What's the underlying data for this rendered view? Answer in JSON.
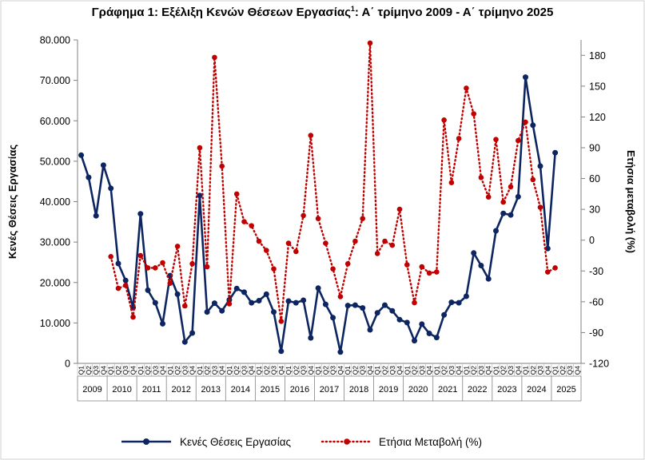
{
  "chart_data": {
    "type": "line",
    "title_main": "Γράφημα 1: Εξέλιξη Κενών Θέσεων Εργασίας",
    "title_sup": "1",
    "title_rest": ": Α΄ τρίμηνο 2009 - Α΄ τρίμηνο 2025",
    "ylabel_left": "Κενές Θέσεις Εργασίας",
    "ylabel_right": "Ετήσια μεταβολή (%)",
    "y_left": {
      "min": 0,
      "max": 80000,
      "step": 10000,
      "ticks": [
        "0",
        "10.000",
        "20.000",
        "30.000",
        "40.000",
        "50.000",
        "60.000",
        "70.000",
        "80.000"
      ]
    },
    "y_right": {
      "min": -120,
      "max": 195,
      "step": 30,
      "ticks": [
        "-120",
        "-90",
        "-60",
        "-30",
        "0",
        "30",
        "60",
        "90",
        "120",
        "150",
        "180"
      ]
    },
    "quarter_labels": [
      "Q1",
      "Q2",
      "Q3",
      "Q4"
    ],
    "years": [
      "2009",
      "2010",
      "2011",
      "2012",
      "2013",
      "2014",
      "2015",
      "2016",
      "2017",
      "2018",
      "2019",
      "2020",
      "2021",
      "2022",
      "2023",
      "2024",
      "2025"
    ],
    "series": [
      {
        "name": "Κενές Θέσεις Εργασίας",
        "axis": "left",
        "color": "#0d2560",
        "style": "solid",
        "values": [
          51500,
          46000,
          36500,
          49000,
          43300,
          24700,
          20500,
          13800,
          37000,
          18100,
          15000,
          9800,
          21700,
          17100,
          5300,
          7500,
          41500,
          12700,
          14900,
          13000,
          15700,
          18500,
          17600,
          15000,
          15500,
          17100,
          12700,
          3000,
          15400,
          15000,
          15600,
          6300,
          18600,
          14600,
          11300,
          2800,
          14300,
          14400,
          13700,
          8300,
          12500,
          14400,
          13000,
          10800,
          10100,
          5600,
          9700,
          7400,
          6400,
          12000,
          15100,
          15000,
          16600,
          27300,
          24200,
          20900,
          32800,
          37100,
          36700,
          41200,
          70800,
          58900,
          48800,
          28400,
          52100,
          null,
          null,
          null
        ]
      },
      {
        "name": "Ετήσια Μεταβολή (%)",
        "axis": "right",
        "color": "#c00000",
        "style": "dotted",
        "values": [
          null,
          null,
          null,
          null,
          -16,
          -47,
          -44,
          -75,
          -15,
          -27,
          -27,
          -22,
          -42,
          -6,
          -64,
          -23,
          90,
          -26,
          178,
          72,
          -62,
          45,
          18,
          14,
          -1,
          -10,
          -28,
          -79,
          -3,
          -11,
          24,
          102,
          21,
          -3,
          -28,
          -55,
          -23,
          -1,
          21,
          192,
          -13,
          -1,
          -5,
          30,
          -24,
          -61,
          -26,
          -32,
          -31,
          117,
          56,
          99,
          148,
          123,
          61,
          42,
          98,
          37,
          52,
          97,
          115,
          59,
          32,
          -31,
          -27,
          null,
          null,
          null
        ]
      }
    ],
    "legend": [
      "Κενές Θέσεις Εργασίας",
      "Ετήσια Μεταβολή (%)"
    ]
  }
}
